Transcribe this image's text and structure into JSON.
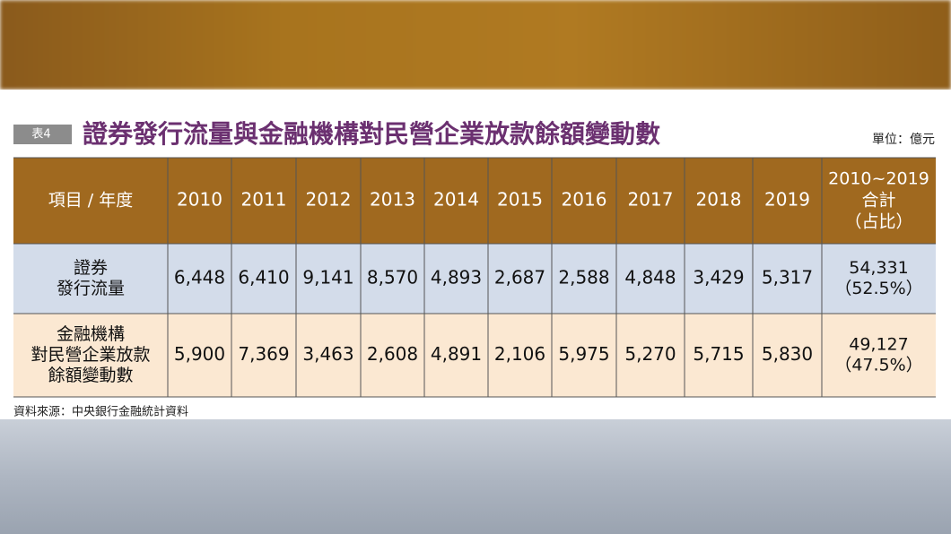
{
  "label": "表4",
  "title": "證券發行流量與金融機構對民營企業放款餘額變動數",
  "unit": "單位：億元",
  "table": {
    "header": [
      [
        "項目 / 年度"
      ],
      [
        "2010"
      ],
      [
        "2011"
      ],
      [
        "2012"
      ],
      [
        "2013"
      ],
      [
        "2014"
      ],
      [
        "2015"
      ],
      [
        "2016"
      ],
      [
        "2017"
      ],
      [
        "2018"
      ],
      [
        "2019"
      ],
      [
        "2010~2019",
        "合計",
        "（占比）"
      ]
    ],
    "rows": [
      [
        [
          "證券",
          "發行流量"
        ],
        [
          "6,448"
        ],
        [
          "6,410"
        ],
        [
          "9,141"
        ],
        [
          "8,570"
        ],
        [
          "4,893"
        ],
        [
          "2,687"
        ],
        [
          "2,588"
        ],
        [
          "4,848"
        ],
        [
          "3,429"
        ],
        [
          "5,317"
        ],
        [
          "54,331",
          "（52.5%）"
        ]
      ],
      [
        [
          "金融機構",
          "對民營企業放款",
          "餘額變動數"
        ],
        [
          "5,900"
        ],
        [
          "7,369"
        ],
        [
          "3,463"
        ],
        [
          "2,608"
        ],
        [
          "4,891"
        ],
        [
          "2,106"
        ],
        [
          "5,975"
        ],
        [
          "5,270"
        ],
        [
          "5,715"
        ],
        [
          "5,830"
        ],
        [
          "49,127",
          "（47.5%）"
        ]
      ]
    ]
  },
  "source": "資料來源：中央銀行金融統計資料"
}
